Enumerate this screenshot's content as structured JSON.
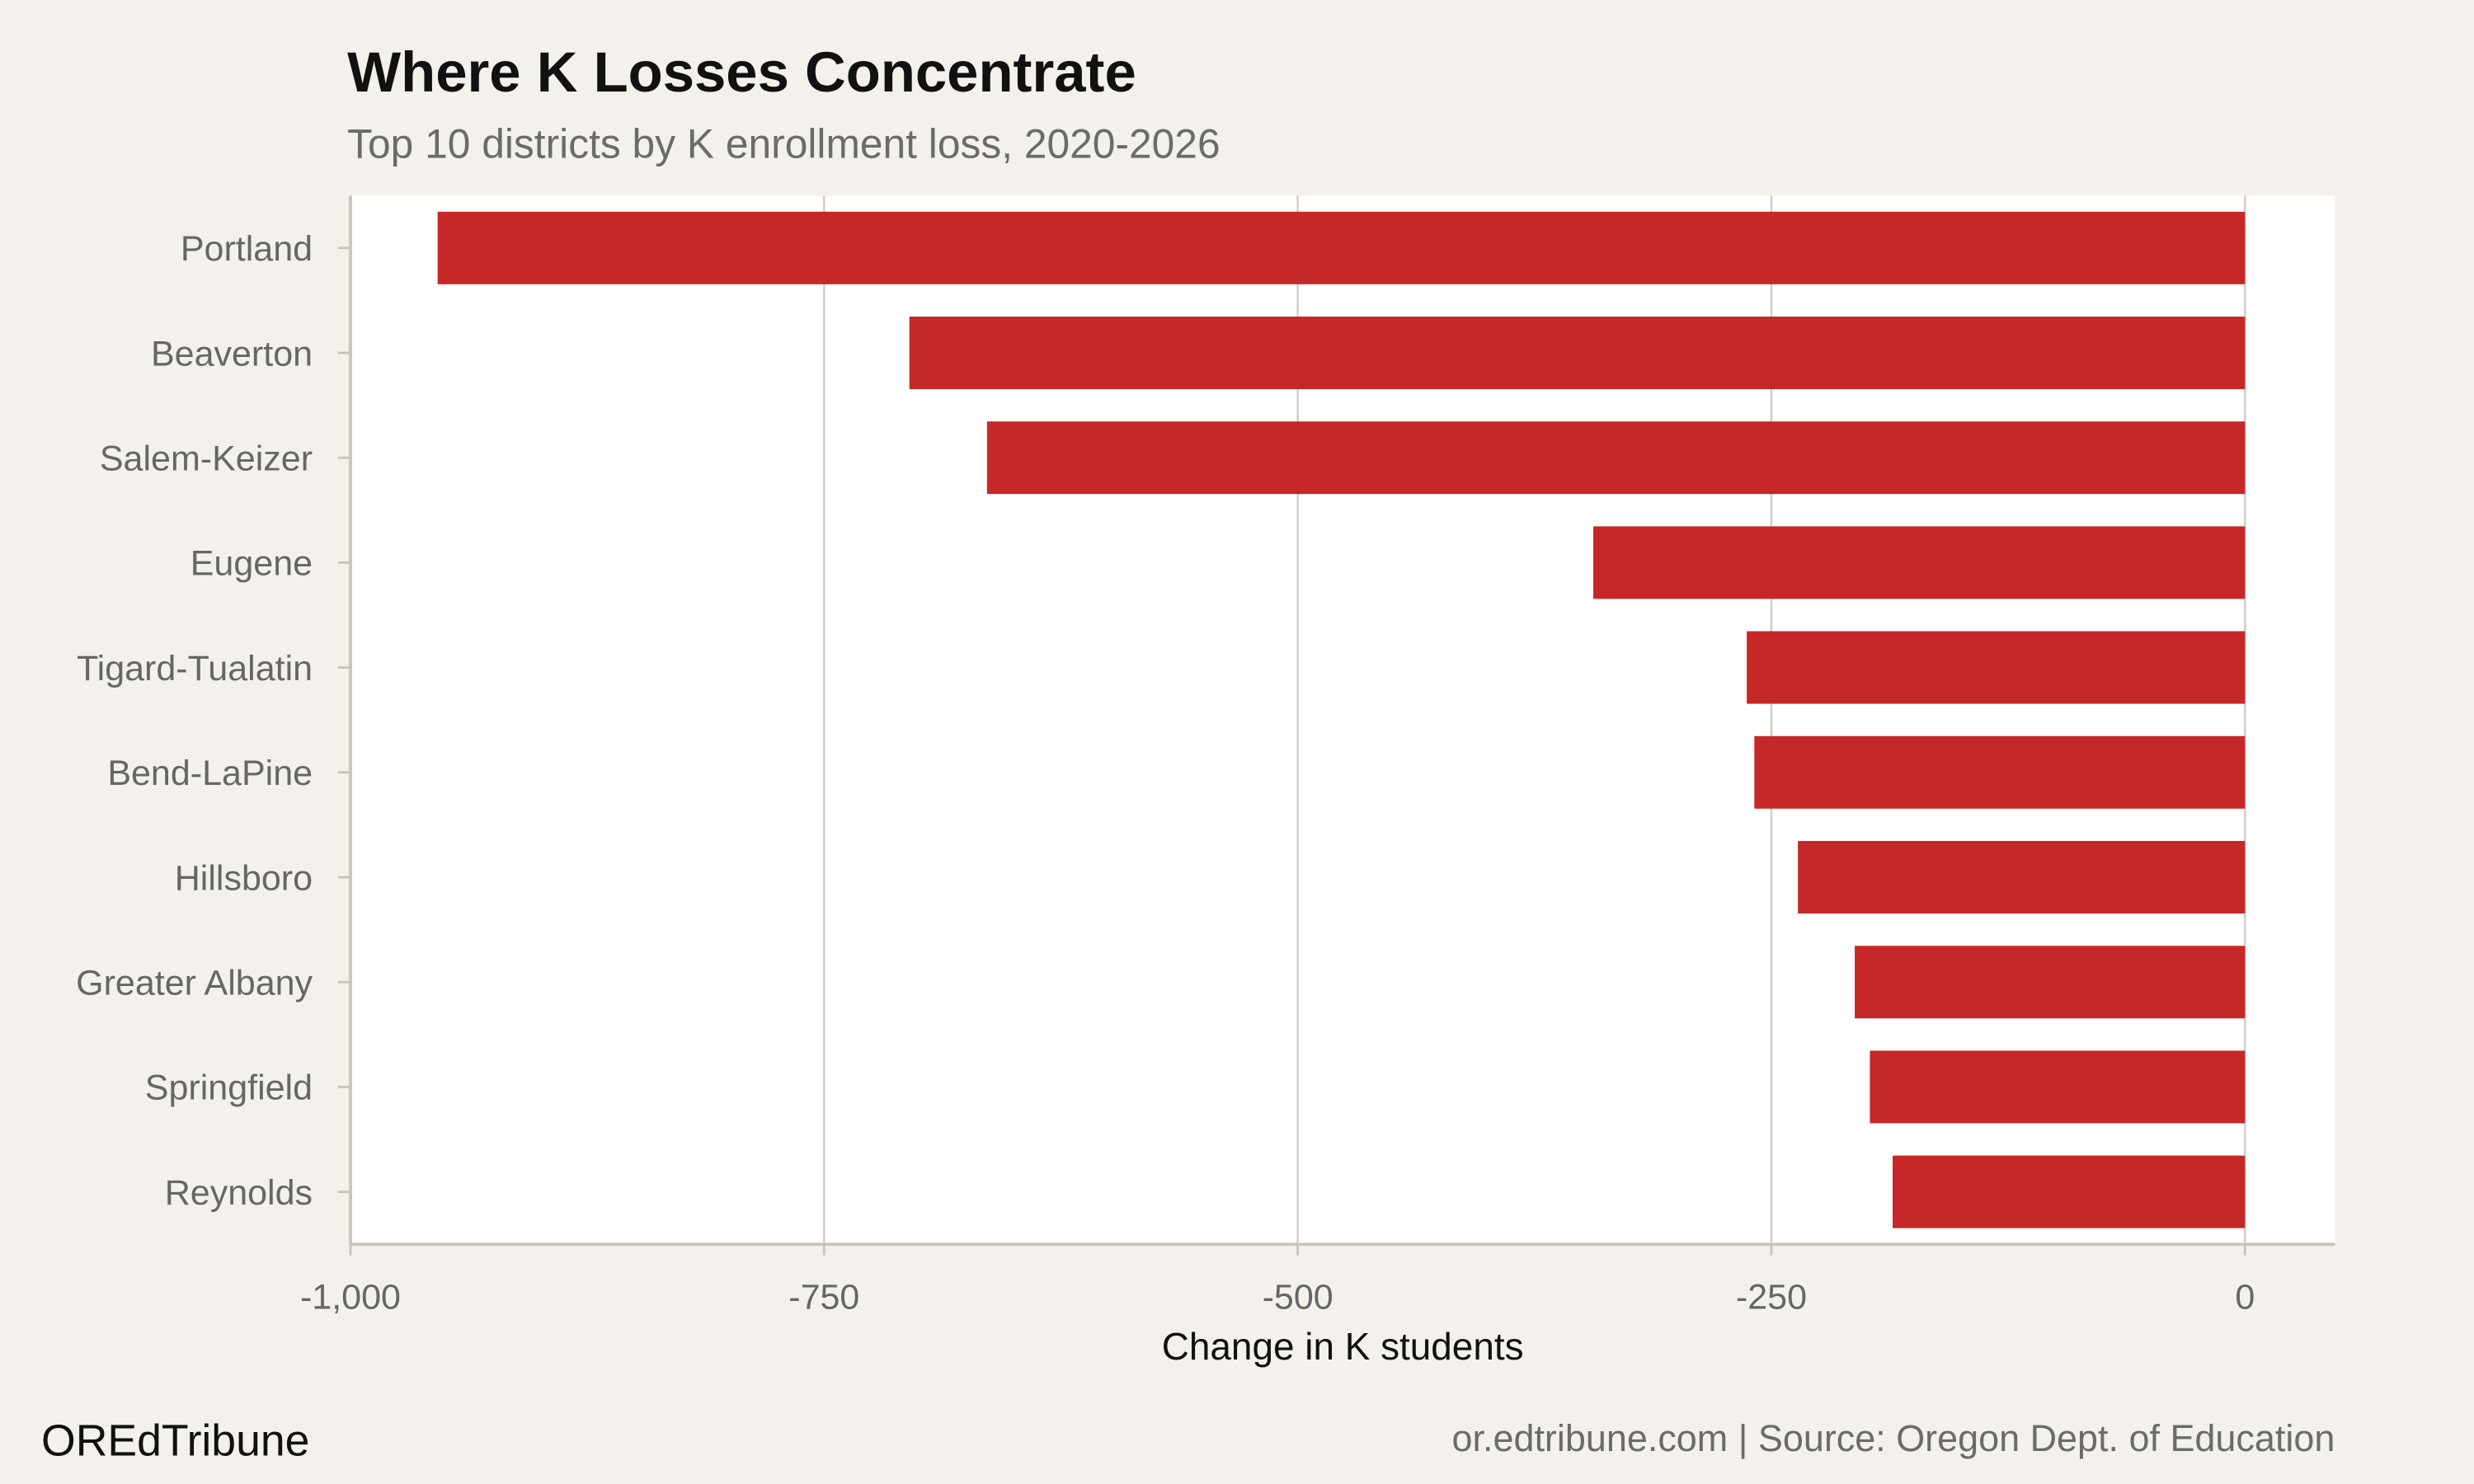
{
  "chart_data": {
    "type": "bar",
    "orientation": "horizontal",
    "title": "Where K Losses Concentrate",
    "subtitle": "Top 10 districts by K enrollment loss, 2020-2026",
    "xlabel": "Change in K students",
    "ylabel": "",
    "categories": [
      "Portland",
      "Beaverton",
      "Salem-Keizer",
      "Eugene",
      "Tigard-Tualatin",
      "Bend-LaPine",
      "Hillsboro",
      "Greater Albany",
      "Springfield",
      "Reynolds"
    ],
    "values": [
      -954,
      -705,
      -664,
      -344,
      -263,
      -259,
      -236,
      -206,
      -198,
      -186
    ],
    "xlim": [
      -1000,
      45
    ],
    "xticks": [
      -1000,
      -750,
      -500,
      -250,
      0
    ],
    "xtick_labels": [
      "-1,000",
      "-750",
      "-500",
      "-250",
      "0"
    ],
    "grid": "vertical",
    "bar_color": "#c62828",
    "panel_color": "#ffffff",
    "background_color": "#f4f1ec"
  },
  "footer": {
    "brand": "OREdTribune",
    "source": "or.edtribune.com | Source: Oregon Dept. of Education"
  }
}
